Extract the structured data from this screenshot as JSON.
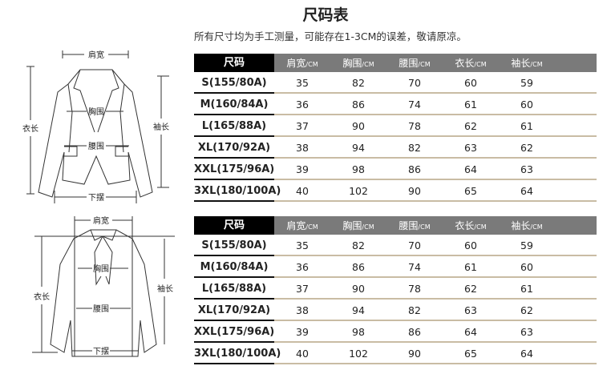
{
  "title": "尺码表",
  "note": "所有尺寸均为手工测量，可能存在1-3CM的误差，敬请原凉。",
  "diagram_labels": {
    "shoulder": "肩宽",
    "chest": "胸围",
    "waist": "腰围",
    "length": "衣长",
    "sleeve": "袖长",
    "hem": "下摆"
  },
  "tables": [
    {
      "headers": [
        "尺码",
        "肩宽",
        "胸围",
        "腰围",
        "衣长",
        "袖长"
      ],
      "unit": "/CM",
      "rows": [
        [
          "S(155/80A)",
          "35",
          "82",
          "70",
          "60",
          "59"
        ],
        [
          "M(160/84A)",
          "36",
          "86",
          "74",
          "61",
          "60"
        ],
        [
          "L(165/88A)",
          "37",
          "90",
          "78",
          "62",
          "61"
        ],
        [
          "XL(170/92A)",
          "38",
          "94",
          "82",
          "63",
          "62"
        ],
        [
          "XXL(175/96A)",
          "39",
          "98",
          "86",
          "64",
          "63"
        ],
        [
          "3XL(180/100A)",
          "40",
          "102",
          "90",
          "65",
          "64"
        ]
      ]
    },
    {
      "headers": [
        "尺码",
        "肩宽",
        "胸围",
        "腰围",
        "衣长",
        "袖长"
      ],
      "unit": "/CM",
      "rows": [
        [
          "S(155/80A)",
          "35",
          "82",
          "70",
          "60",
          "59"
        ],
        [
          "M(160/84A)",
          "36",
          "86",
          "74",
          "61",
          "60"
        ],
        [
          "L(165/88A)",
          "37",
          "90",
          "78",
          "62",
          "61"
        ],
        [
          "XL(170/92A)",
          "38",
          "94",
          "82",
          "63",
          "62"
        ],
        [
          "XXL(175/96A)",
          "39",
          "98",
          "86",
          "64",
          "63"
        ],
        [
          "3XL(180/100A)",
          "40",
          "102",
          "90",
          "65",
          "64"
        ]
      ]
    }
  ],
  "colors": {
    "header_size_bg": "#000000",
    "header_bg": "#7a7a7a",
    "row_divider": "#c9bca4"
  }
}
